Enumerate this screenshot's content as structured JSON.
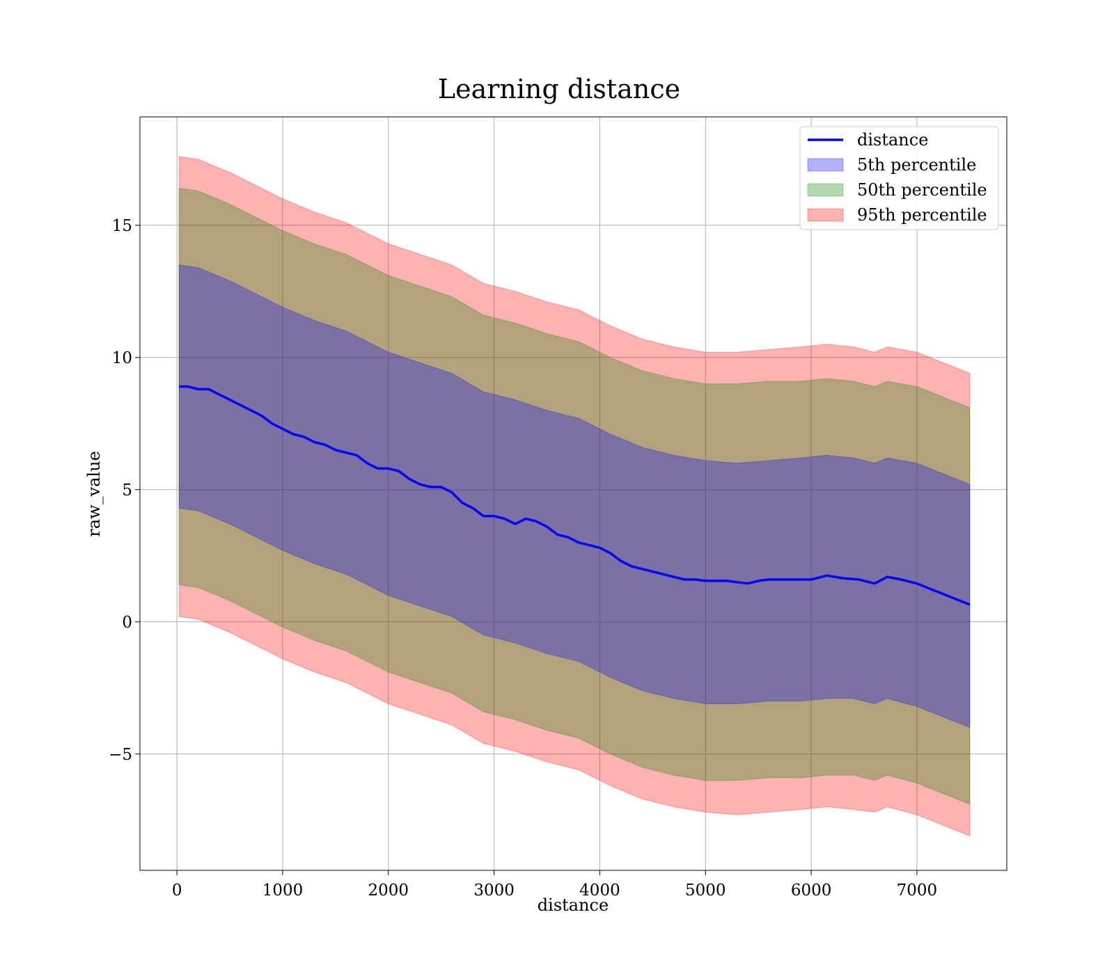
{
  "chart_data": {
    "type": "area",
    "title": "Learning distance",
    "xlabel": "distance",
    "ylabel": "raw_value",
    "xlim": [
      -350,
      7850
    ],
    "ylim": [
      -9.4,
      19.1
    ],
    "x_ticks": [
      0,
      1000,
      2000,
      3000,
      4000,
      5000,
      6000,
      7000
    ],
    "y_ticks": [
      -5,
      0,
      5,
      10,
      15
    ],
    "grid": true,
    "legend_position": "top-right",
    "series": [
      {
        "name": "distance",
        "kind": "line",
        "color": "#0000ff",
        "x": [
          20,
          100,
          200,
          300,
          400,
          500,
          600,
          700,
          800,
          900,
          1000,
          1100,
          1200,
          1300,
          1400,
          1500,
          1600,
          1700,
          1800,
          1900,
          2000,
          2100,
          2200,
          2300,
          2400,
          2500,
          2600,
          2700,
          2800,
          2900,
          3000,
          3100,
          3200,
          3300,
          3400,
          3500,
          3600,
          3700,
          3800,
          3900,
          4000,
          4100,
          4200,
          4300,
          4400,
          4500,
          4600,
          4700,
          4800,
          4900,
          5000,
          5100,
          5200,
          5300,
          5400,
          5500,
          5600,
          5800,
          6000,
          6150,
          6300,
          6450,
          6600,
          6720,
          6850,
          7000,
          7500
        ],
        "y": [
          8.9,
          8.9,
          8.8,
          8.8,
          8.6,
          8.4,
          8.2,
          8.0,
          7.8,
          7.5,
          7.3,
          7.1,
          7.0,
          6.8,
          6.7,
          6.5,
          6.4,
          6.3,
          6.0,
          5.8,
          5.8,
          5.7,
          5.4,
          5.2,
          5.1,
          5.1,
          4.9,
          4.5,
          4.3,
          4.0,
          4.0,
          3.9,
          3.7,
          3.9,
          3.8,
          3.6,
          3.3,
          3.2,
          3.0,
          2.9,
          2.8,
          2.6,
          2.3,
          2.1,
          2.0,
          1.9,
          1.8,
          1.7,
          1.6,
          1.6,
          1.55,
          1.55,
          1.55,
          1.5,
          1.45,
          1.55,
          1.6,
          1.6,
          1.6,
          1.75,
          1.65,
          1.6,
          1.45,
          1.7,
          1.6,
          1.45,
          0.65
        ]
      },
      {
        "name": "5th percentile",
        "kind": "band",
        "color": "#0000ff",
        "x": [
          20,
          200,
          500,
          800,
          1000,
          1300,
          1600,
          2000,
          2300,
          2600,
          2900,
          3200,
          3500,
          3800,
          4100,
          4400,
          4700,
          5000,
          5300,
          5600,
          5900,
          6150,
          6400,
          6600,
          6720,
          7000,
          7500
        ],
        "lower": [
          4.3,
          4.2,
          3.7,
          3.1,
          2.7,
          2.2,
          1.8,
          1.0,
          0.6,
          0.2,
          -0.5,
          -0.8,
          -1.2,
          -1.5,
          -2.1,
          -2.6,
          -2.9,
          -3.1,
          -3.1,
          -3.0,
          -3.0,
          -2.9,
          -2.9,
          -3.1,
          -2.9,
          -3.2,
          -4.0
        ],
        "upper": [
          13.5,
          13.4,
          12.9,
          12.3,
          11.9,
          11.4,
          11.0,
          10.2,
          9.8,
          9.4,
          8.7,
          8.4,
          8.0,
          7.7,
          7.1,
          6.6,
          6.3,
          6.1,
          6.0,
          6.1,
          6.2,
          6.3,
          6.2,
          6.0,
          6.2,
          6.0,
          5.2
        ]
      },
      {
        "name": "50th percentile",
        "kind": "band",
        "color": "#008000",
        "x": [
          20,
          200,
          500,
          800,
          1000,
          1300,
          1600,
          2000,
          2300,
          2600,
          2900,
          3200,
          3500,
          3800,
          4100,
          4400,
          4700,
          5000,
          5300,
          5600,
          5900,
          6150,
          6400,
          6600,
          6720,
          7000,
          7500
        ],
        "lower": [
          1.4,
          1.3,
          0.8,
          0.2,
          -0.2,
          -0.7,
          -1.1,
          -1.9,
          -2.3,
          -2.7,
          -3.4,
          -3.7,
          -4.1,
          -4.4,
          -5.0,
          -5.5,
          -5.8,
          -6.0,
          -6.0,
          -5.9,
          -5.9,
          -5.8,
          -5.8,
          -6.0,
          -5.8,
          -6.1,
          -6.9
        ],
        "upper": [
          16.4,
          16.3,
          15.8,
          15.2,
          14.8,
          14.3,
          13.9,
          13.1,
          12.7,
          12.3,
          11.6,
          11.3,
          10.9,
          10.6,
          10.0,
          9.5,
          9.2,
          9.0,
          9.0,
          9.1,
          9.1,
          9.2,
          9.1,
          8.9,
          9.1,
          8.9,
          8.1
        ]
      },
      {
        "name": "95th percentile",
        "kind": "band",
        "color": "#ff0000",
        "x": [
          20,
          200,
          500,
          800,
          1000,
          1300,
          1600,
          2000,
          2300,
          2600,
          2900,
          3200,
          3500,
          3800,
          4100,
          4400,
          4700,
          5000,
          5300,
          5600,
          5900,
          6150,
          6400,
          6600,
          6720,
          7000,
          7500
        ],
        "lower": [
          0.2,
          0.1,
          -0.4,
          -1.0,
          -1.4,
          -1.9,
          -2.3,
          -3.1,
          -3.5,
          -3.9,
          -4.6,
          -4.9,
          -5.3,
          -5.6,
          -6.2,
          -6.7,
          -7.0,
          -7.2,
          -7.3,
          -7.2,
          -7.1,
          -7.0,
          -7.1,
          -7.2,
          -7.0,
          -7.3,
          -8.1
        ],
        "upper": [
          17.6,
          17.5,
          17.0,
          16.4,
          16.0,
          15.5,
          15.1,
          14.3,
          13.9,
          13.5,
          12.8,
          12.5,
          12.1,
          11.8,
          11.2,
          10.7,
          10.4,
          10.2,
          10.2,
          10.3,
          10.4,
          10.5,
          10.4,
          10.2,
          10.4,
          10.2,
          9.4
        ]
      }
    ]
  }
}
